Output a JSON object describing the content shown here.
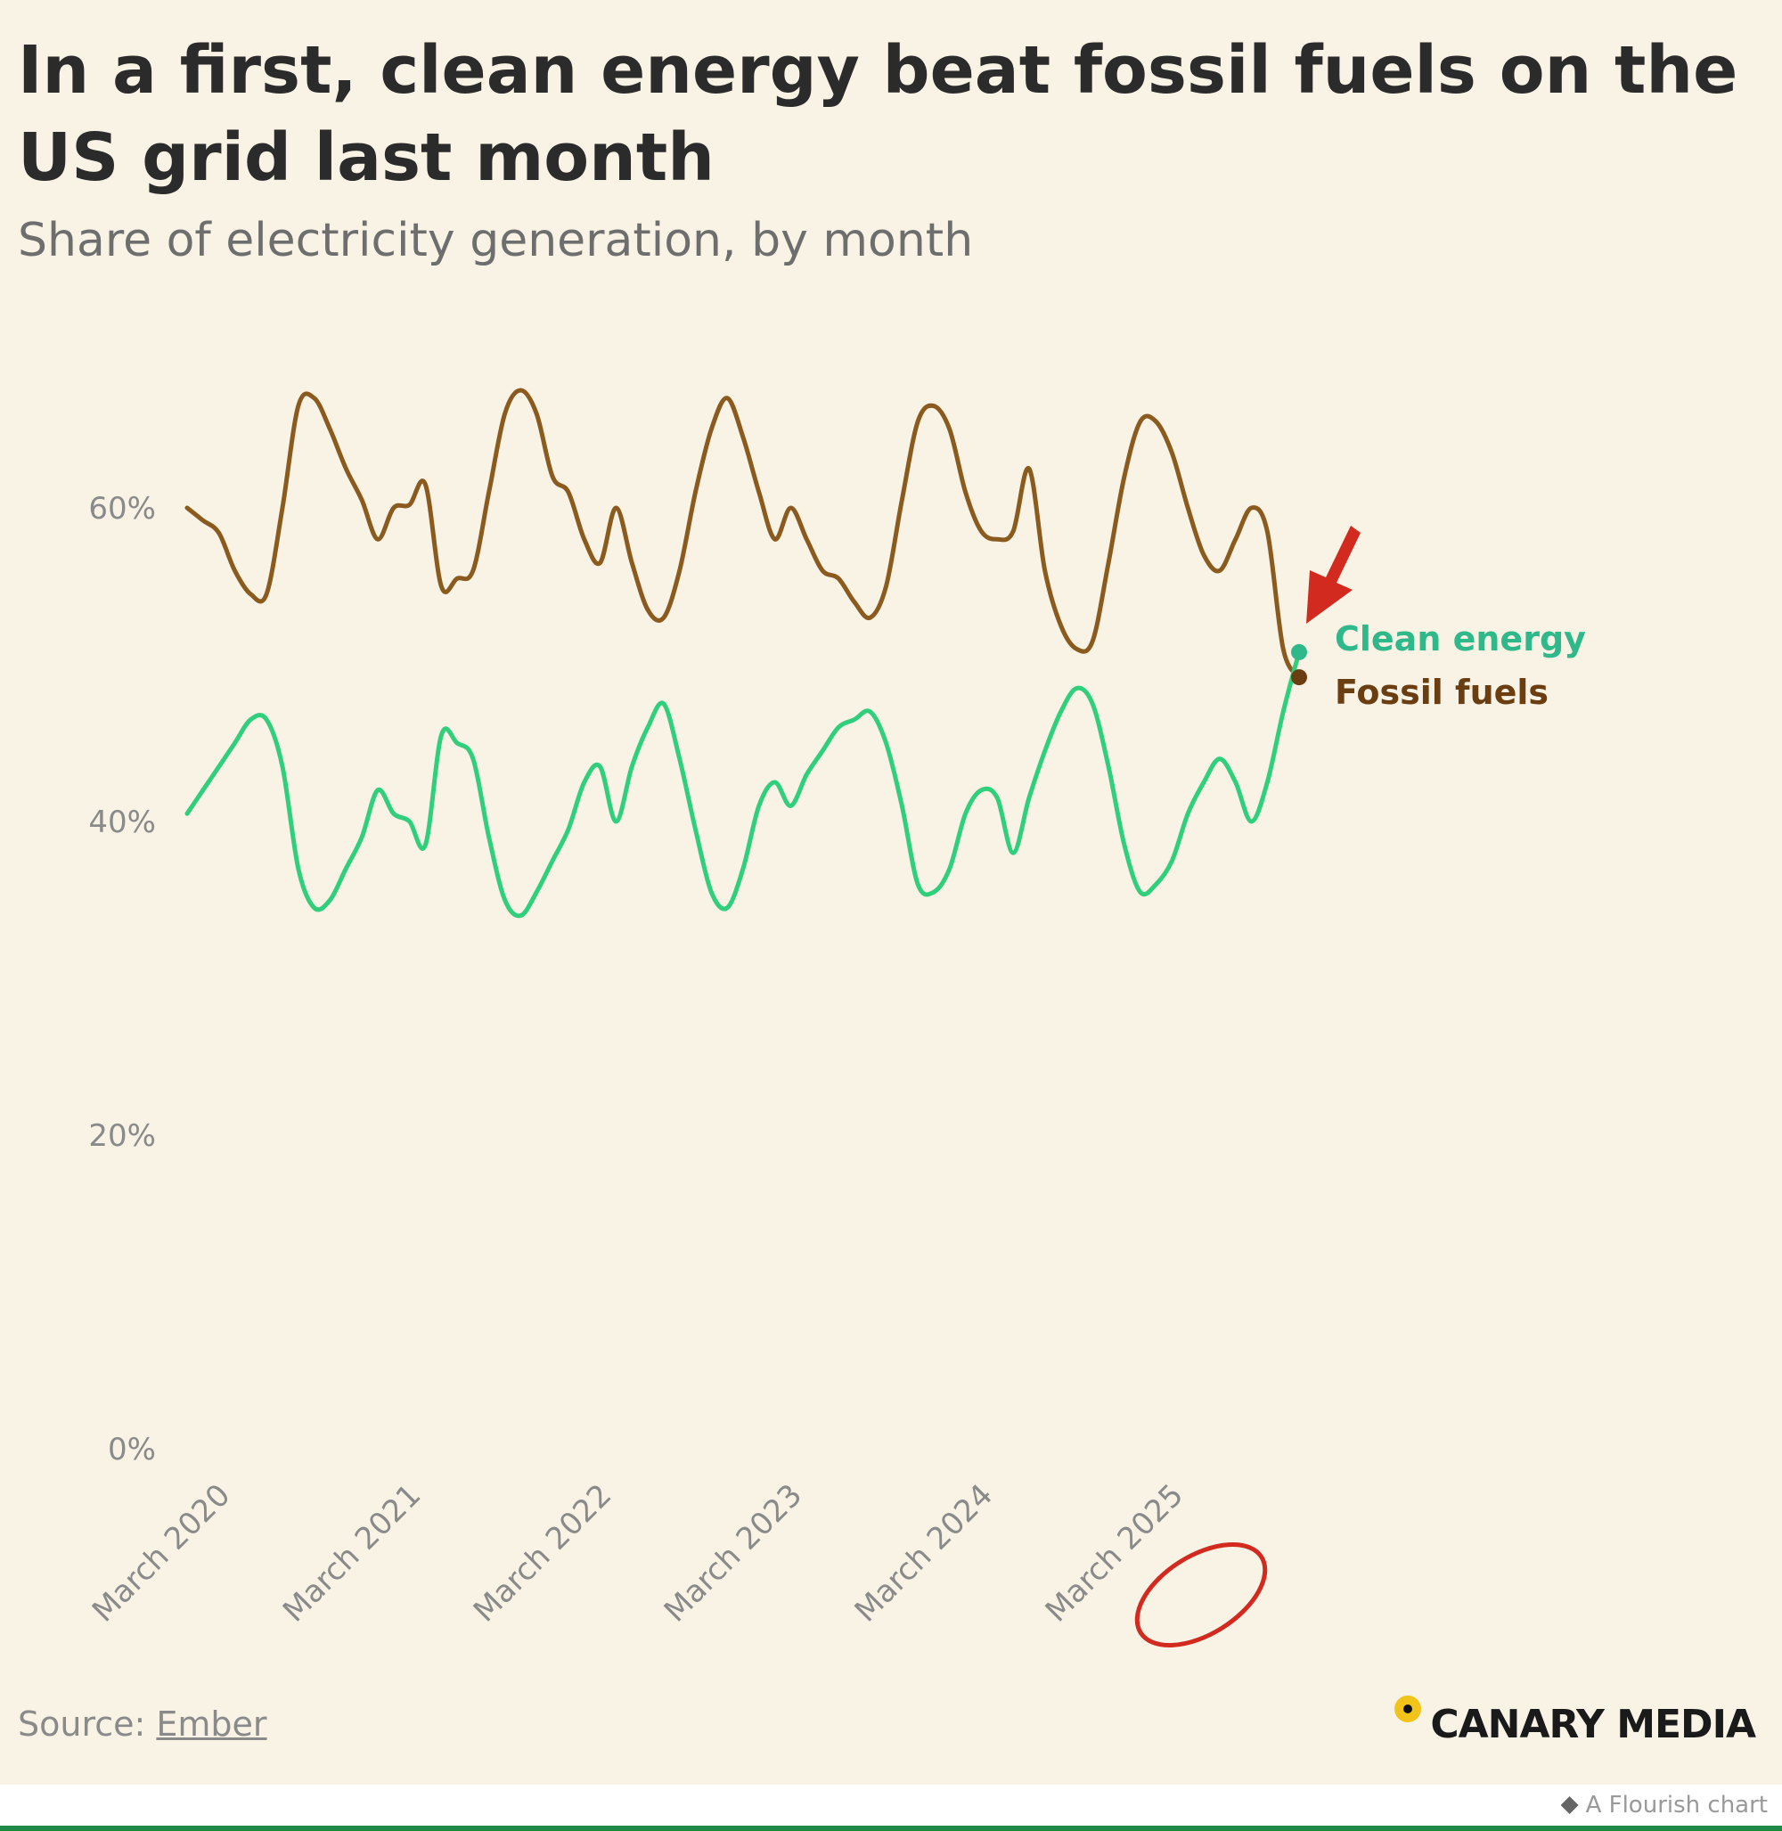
{
  "title": "In a first, clean energy beat fossil fuels on the US grid last month",
  "subtitle": "Share of electricity generation, by month",
  "source": {
    "prefix": "Source: ",
    "link": "Ember"
  },
  "brand": {
    "name": "CANARY MEDIA"
  },
  "flourish": "A Flourish chart",
  "colors": {
    "fossil": "#8a5a1e",
    "clean": "#2fcf7c",
    "clean_label": "#2fb98a",
    "fossil_label": "#6b3e12",
    "annotation": "#d22a1e",
    "background": "#f8f3e4"
  },
  "chart_data": {
    "type": "line",
    "title": "In a first, clean energy beat fossil fuels on the US grid last month",
    "subtitle": "Share of electricity generation, by month",
    "ylim": [
      0,
      70
    ],
    "yticks": [
      0,
      20,
      40,
      60
    ],
    "ytick_labels": [
      "0%",
      "20%",
      "40%",
      "60%"
    ],
    "xticks": [
      "March 2020",
      "March 2021",
      "March 2022",
      "March 2023",
      "March 2024",
      "March 2025"
    ],
    "x_start": "March 2020",
    "x_end": "March 2025",
    "grid": false,
    "legend": "inline labels at line ends",
    "highlight": "March 2025",
    "series": [
      {
        "name": "Fossil fuels",
        "values": [
          60.0,
          59.2,
          58.4,
          56.0,
          54.5,
          54.5,
          60.0,
          66.5,
          67.0,
          65.0,
          62.5,
          60.5,
          58.0,
          60.0,
          60.2,
          61.5,
          55.0,
          55.5,
          56.0,
          61.0,
          66.0,
          67.5,
          66.0,
          62.0,
          61.0,
          58.0,
          56.5,
          60.0,
          56.5,
          53.5,
          53.0,
          56.0,
          61.0,
          65.0,
          67.0,
          64.5,
          61.0,
          58.0,
          60.0,
          58.0,
          56.0,
          55.5,
          54.0,
          53.0,
          55.0,
          60.5,
          65.5,
          66.5,
          65.0,
          61.0,
          58.5,
          58.0,
          58.5,
          62.5,
          56.0,
          52.5,
          51.0,
          51.5,
          56.5,
          62.0,
          65.5,
          65.5,
          63.5,
          60.0,
          57.0,
          56.0,
          58.0,
          60.0,
          58.5,
          51.0,
          49.2
        ]
      },
      {
        "name": "Clean energy",
        "values": [
          40.5,
          42.0,
          43.5,
          45.0,
          46.5,
          46.5,
          43.5,
          37.0,
          34.5,
          35.0,
          37.0,
          39.0,
          42.0,
          40.5,
          40.0,
          38.5,
          45.5,
          45.0,
          44.0,
          39.0,
          35.0,
          34.0,
          35.5,
          37.5,
          39.5,
          42.5,
          43.5,
          40.0,
          43.5,
          46.0,
          47.5,
          44.0,
          39.5,
          35.5,
          34.5,
          37.0,
          41.0,
          42.5,
          41.0,
          43.0,
          44.5,
          46.0,
          46.5,
          47.0,
          45.0,
          41.0,
          36.0,
          35.5,
          37.0,
          40.5,
          42.0,
          41.5,
          38.0,
          41.5,
          44.5,
          47.0,
          48.5,
          47.5,
          43.5,
          38.5,
          35.5,
          36.0,
          37.5,
          40.5,
          42.5,
          44.0,
          42.5,
          40.0,
          42.5,
          47.0,
          50.8
        ]
      }
    ]
  }
}
